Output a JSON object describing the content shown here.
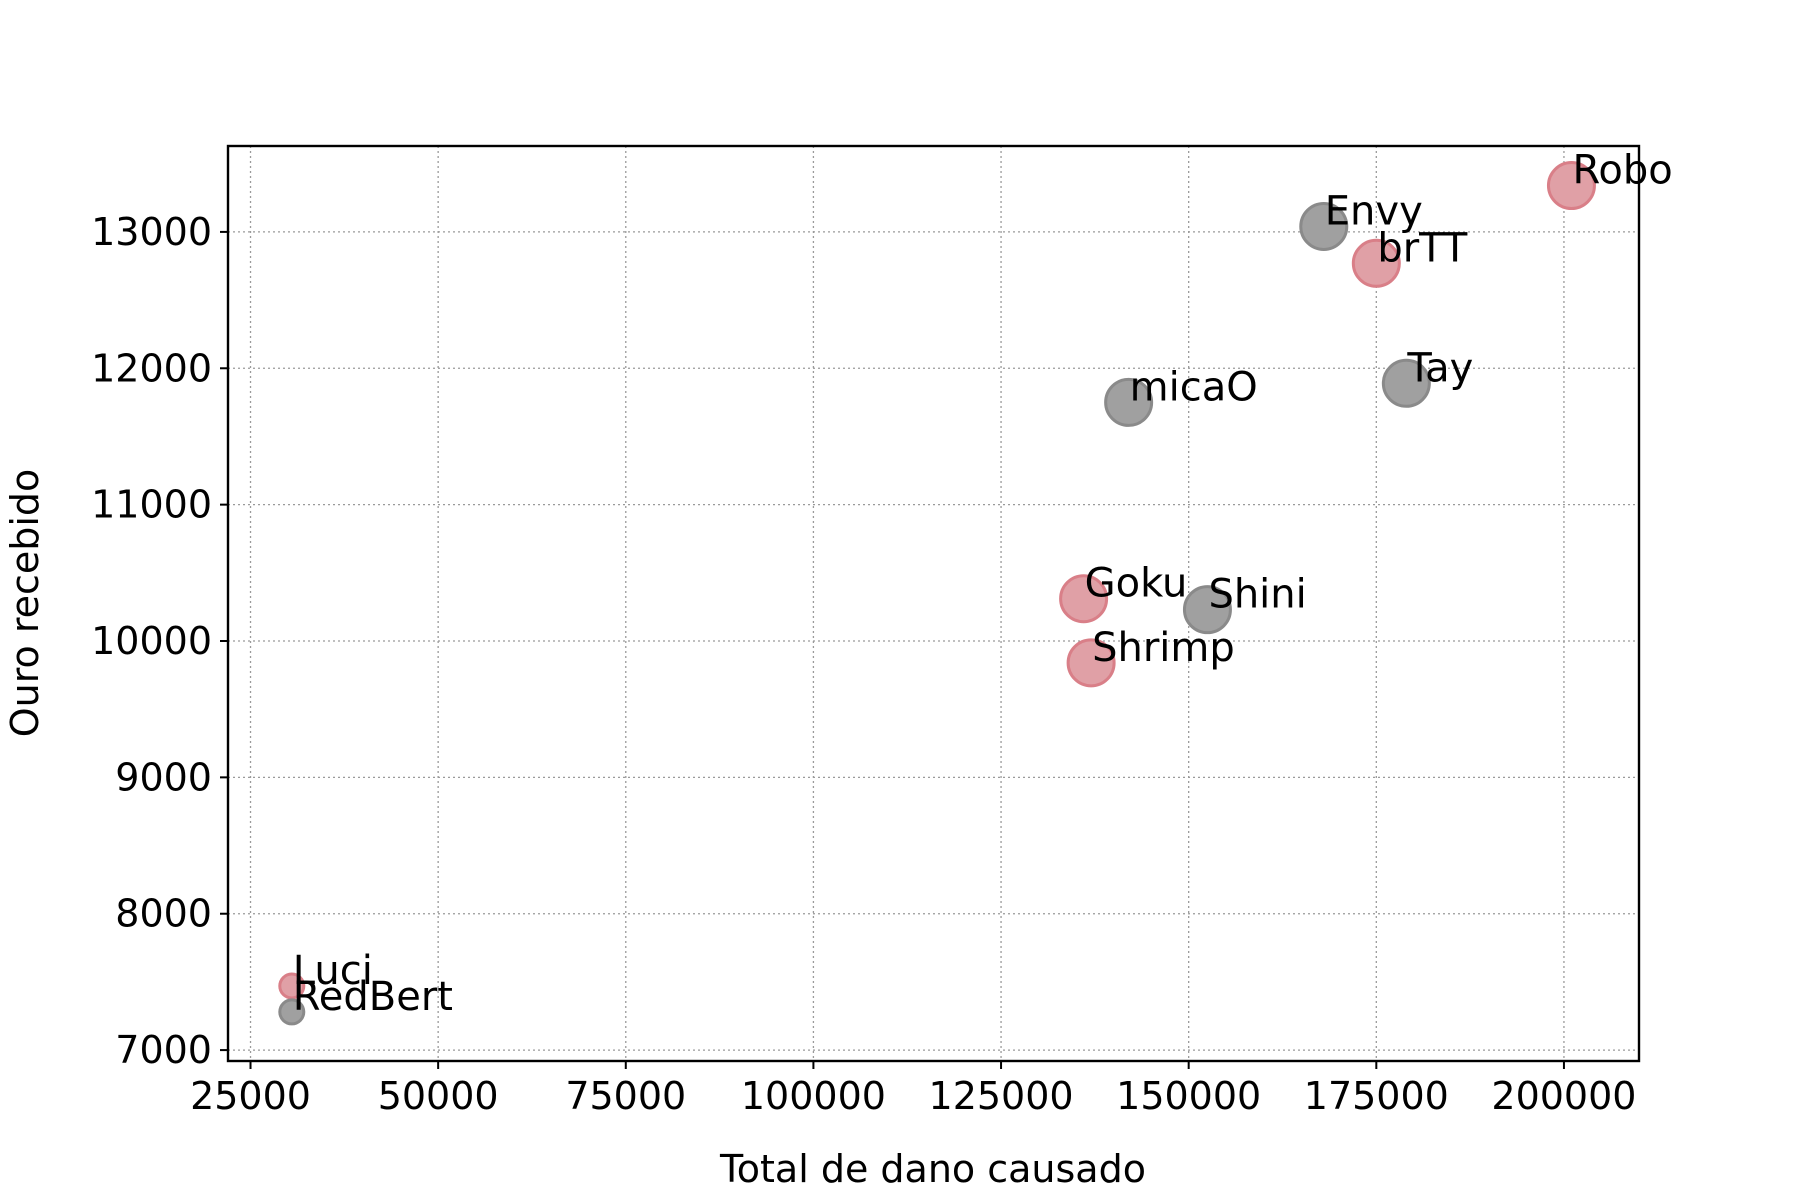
{
  "chart_data": {
    "type": "scatter",
    "title": "",
    "xlabel": "Total de dano causado",
    "ylabel": "Ouro recebido",
    "xlim": [
      22000,
      210000
    ],
    "ylim": [
      6920,
      13630
    ],
    "xticks": [
      25000,
      50000,
      75000,
      100000,
      125000,
      150000,
      175000,
      200000
    ],
    "yticks": [
      7000,
      8000,
      9000,
      10000,
      11000,
      12000,
      13000
    ],
    "grid": true,
    "legend": "none",
    "colors": {
      "red": "#e0a0a6",
      "gray": "#a0a0a0"
    },
    "points": [
      {
        "label": "Robo",
        "x": 201000,
        "y": 13340,
        "color": "red",
        "size": "large"
      },
      {
        "label": "Envy",
        "x": 168000,
        "y": 13040,
        "color": "gray",
        "size": "large"
      },
      {
        "label": "brTT",
        "x": 175000,
        "y": 12770,
        "color": "red",
        "size": "large"
      },
      {
        "label": "Tay",
        "x": 179000,
        "y": 11890,
        "color": "gray",
        "size": "large"
      },
      {
        "label": "micaO",
        "x": 142000,
        "y": 11750,
        "color": "gray",
        "size": "large"
      },
      {
        "label": "Goku",
        "x": 136000,
        "y": 10310,
        "color": "red",
        "size": "large"
      },
      {
        "label": "Shini",
        "x": 152500,
        "y": 10230,
        "color": "gray",
        "size": "large"
      },
      {
        "label": "Shrimp",
        "x": 137000,
        "y": 9840,
        "color": "red",
        "size": "large"
      },
      {
        "label": "Luci",
        "x": 30500,
        "y": 7470,
        "color": "red",
        "size": "small"
      },
      {
        "label": "RedBert",
        "x": 30500,
        "y": 7280,
        "color": "gray",
        "size": "small"
      }
    ]
  }
}
